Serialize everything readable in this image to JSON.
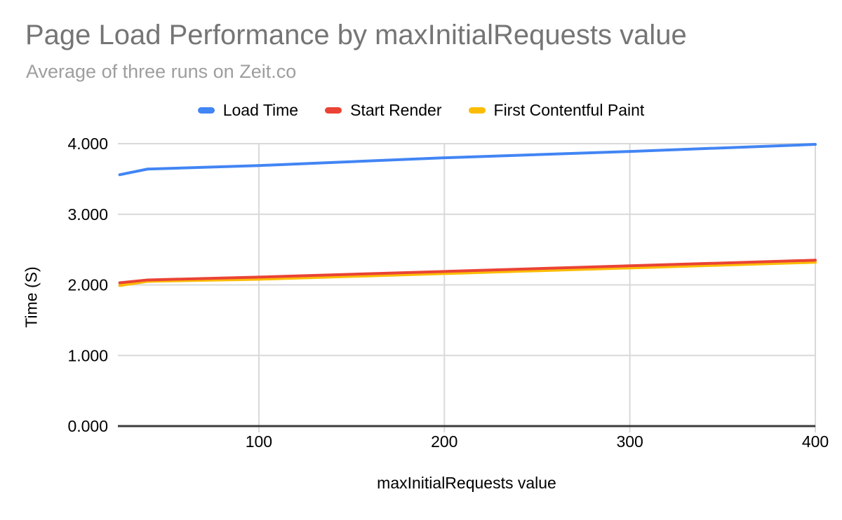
{
  "chart_data": {
    "type": "line",
    "title": "Page Load Performance by maxInitialRequests value",
    "subtitle": "Average of three runs on Zeit.co",
    "xlabel": "maxInitialRequests value",
    "ylabel": "Time (S)",
    "x": [
      25,
      40,
      100,
      200,
      300,
      400
    ],
    "series": [
      {
        "name": "Load Time",
        "color": "#4285f4",
        "values": [
          3.56,
          3.64,
          3.69,
          3.8,
          3.89,
          3.99
        ]
      },
      {
        "name": "Start Render",
        "color": "#ea4335",
        "values": [
          2.03,
          2.07,
          2.11,
          2.19,
          2.27,
          2.35
        ]
      },
      {
        "name": "First Contentful Paint",
        "color": "#fbbc04",
        "values": [
          1.99,
          2.05,
          2.08,
          2.16,
          2.24,
          2.32
        ]
      }
    ],
    "xlim": [
      24,
      400
    ],
    "ylim": [
      0,
      4
    ],
    "xticks": [
      100,
      200,
      300,
      400
    ],
    "ytick_labels": [
      "0.000",
      "1.000",
      "2.000",
      "3.000",
      "4.000"
    ],
    "grid": true,
    "legend_position": "top",
    "styles": {
      "grid_color": "#d9d9d9",
      "axis_color": "#3c3c3c",
      "title_color": "#757575",
      "subtitle_color": "#9e9e9e",
      "line_width": 4
    }
  }
}
